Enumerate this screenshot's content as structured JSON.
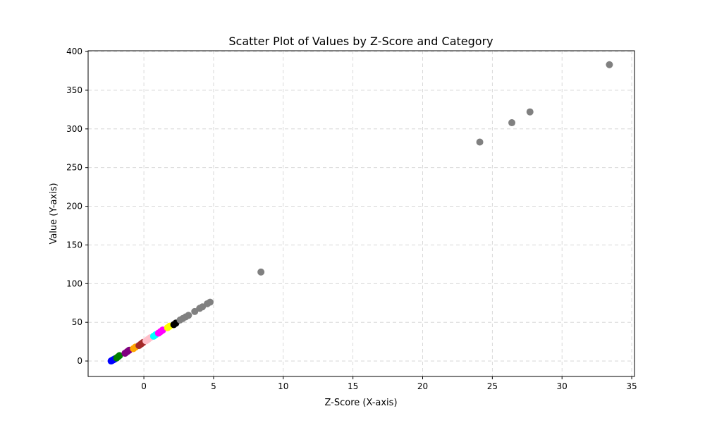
{
  "chart_data": {
    "type": "scatter",
    "title": "Scatter Plot of Values by Z-Score and Category",
    "xlabel": "Z-Score (X-axis)",
    "ylabel": "Value (Y-axis)",
    "xlim": [
      -4,
      35.2
    ],
    "ylim": [
      -20,
      401
    ],
    "xticks": [
      0,
      5,
      10,
      15,
      20,
      25,
      30,
      35
    ],
    "yticks": [
      0,
      50,
      100,
      150,
      200,
      250,
      300,
      350,
      400
    ],
    "grid": true,
    "series": [
      {
        "color": "#0000ff",
        "points": [
          [
            -2.35,
            0
          ],
          [
            -2.3,
            0.5
          ],
          [
            -2.25,
            1
          ],
          [
            -2.2,
            1.5
          ],
          [
            -2.15,
            2
          ],
          [
            -2.1,
            2.5
          ],
          [
            -2.05,
            3
          ]
        ]
      },
      {
        "color": "#008000",
        "points": [
          [
            -1.95,
            4
          ],
          [
            -1.85,
            5.5
          ],
          [
            -1.75,
            7
          ]
        ]
      },
      {
        "color": "#800080",
        "points": [
          [
            -1.35,
            10
          ],
          [
            -1.2,
            12
          ],
          [
            -1.05,
            14
          ]
        ]
      },
      {
        "color": "#ffa500",
        "points": [
          [
            -0.75,
            16
          ],
          [
            -0.6,
            18
          ]
        ]
      },
      {
        "color": "#a52a2a",
        "points": [
          [
            -0.35,
            20
          ],
          [
            -0.2,
            22
          ],
          [
            -0.05,
            24
          ]
        ]
      },
      {
        "color": "#ffc0cb",
        "points": [
          [
            0.15,
            26
          ],
          [
            0.3,
            28
          ],
          [
            0.45,
            30
          ]
        ]
      },
      {
        "color": "#00ffff",
        "points": [
          [
            0.7,
            32
          ],
          [
            0.85,
            34
          ]
        ]
      },
      {
        "color": "#ff00ff",
        "points": [
          [
            1.05,
            36
          ],
          [
            1.2,
            38
          ],
          [
            1.35,
            40
          ]
        ]
      },
      {
        "color": "#ffff00",
        "points": [
          [
            1.7,
            43
          ],
          [
            1.85,
            45
          ]
        ]
      },
      {
        "color": "#000000",
        "points": [
          [
            2.15,
            47
          ],
          [
            2.3,
            49
          ]
        ]
      },
      {
        "color": "#808080",
        "points": [
          [
            2.6,
            53
          ],
          [
            2.8,
            55
          ],
          [
            3.0,
            57
          ],
          [
            3.2,
            59
          ],
          [
            3.65,
            64
          ],
          [
            4.0,
            68
          ],
          [
            4.2,
            70
          ],
          [
            4.55,
            74
          ],
          [
            4.75,
            76
          ],
          [
            8.4,
            115
          ],
          [
            24.1,
            283
          ],
          [
            26.4,
            308
          ],
          [
            27.7,
            322
          ],
          [
            33.4,
            383
          ]
        ]
      }
    ]
  }
}
